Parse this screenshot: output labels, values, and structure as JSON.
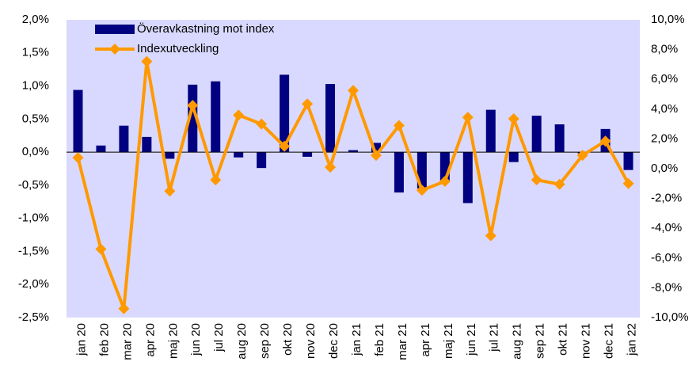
{
  "chart_data": {
    "type": "combo",
    "categories": [
      "jan 20",
      "feb 20",
      "mar 20",
      "apr 20",
      "maj 20",
      "jun 20",
      "jul 20",
      "aug 20",
      "sep 20",
      "okt 20",
      "nov 20",
      "dec 20",
      "jan 21",
      "feb 21",
      "mar 21",
      "apr 21",
      "maj 21",
      "jun 21",
      "jul 21",
      "aug 21",
      "sep 21",
      "okt 21",
      "nov 21",
      "dec 21",
      "jan 22"
    ],
    "series": [
      {
        "name": "Överavkastning mot index",
        "type": "bar",
        "color": "#000080",
        "values": [
          0.94,
          0.1,
          0.4,
          0.23,
          -0.1,
          1.02,
          1.07,
          -0.08,
          -0.24,
          1.17,
          -0.07,
          1.03,
          0.03,
          0.14,
          -0.61,
          -0.55,
          -0.45,
          -0.77,
          0.64,
          -0.15,
          0.55,
          0.42,
          -0.02,
          0.35,
          -0.27
        ]
      },
      {
        "name": "Indexutveckling",
        "type": "line",
        "axis": "y2",
        "color": "#ff9900",
        "values": [
          0.74,
          -5.4,
          -9.4,
          7.2,
          -1.5,
          4.25,
          -0.75,
          3.6,
          3.0,
          1.5,
          4.35,
          0.1,
          5.25,
          0.9,
          2.9,
          -1.45,
          -0.85,
          3.45,
          -4.5,
          3.35,
          -0.75,
          -1.05,
          0.9,
          1.85,
          -1.0
        ]
      }
    ],
    "ylim": [
      -2.5,
      2.0
    ],
    "yticks": [
      {
        "value": 2.0,
        "label": "2,0%"
      },
      {
        "value": 1.5,
        "label": "1,5%"
      },
      {
        "value": 1.0,
        "label": "1,0%"
      },
      {
        "value": 0.5,
        "label": "0,5%"
      },
      {
        "value": 0,
        "label": "0,0%"
      },
      {
        "value": -0.5,
        "label": "-0,5%"
      },
      {
        "value": -1.0,
        "label": "-1,0%"
      },
      {
        "value": -1.5,
        "label": "-1,5%"
      },
      {
        "value": -2.0,
        "label": "-2,0%"
      },
      {
        "value": -2.5,
        "label": "-2,5%"
      }
    ],
    "y2lim": [
      -10,
      10
    ],
    "y2ticks": [
      {
        "value": 10,
        "label": "10,0%"
      },
      {
        "value": 8,
        "label": "8,0%"
      },
      {
        "value": 6,
        "label": "6,0%"
      },
      {
        "value": 4,
        "label": "4,0%"
      },
      {
        "value": 2,
        "label": "2,0%"
      },
      {
        "value": 0,
        "label": "0,0%"
      },
      {
        "value": -2,
        "label": "-2,0%"
      },
      {
        "value": -4,
        "label": "-4,0%"
      },
      {
        "value": -6,
        "label": "-6,0%"
      },
      {
        "value": -8,
        "label": "-8,0%"
      },
      {
        "value": -10,
        "label": "-10,0%"
      }
    ],
    "legend": "upper left",
    "plot_background": "#d9d9ff"
  }
}
